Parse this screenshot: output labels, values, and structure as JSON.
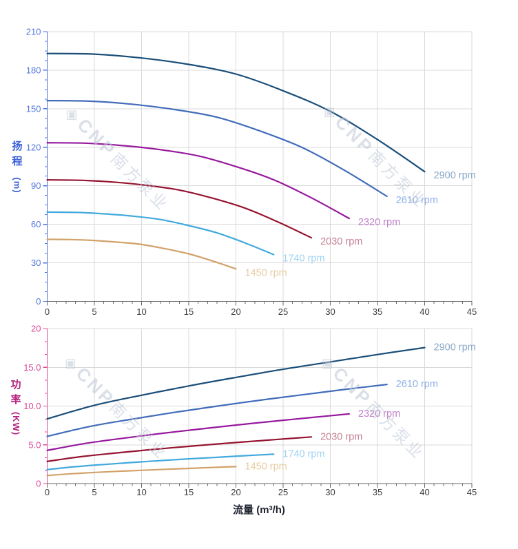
{
  "watermark": {
    "logo_glyph": "◈",
    "brand": "CNP",
    "company": "南方泵业"
  },
  "colors": {
    "grid": "#d9d9d9",
    "x_axis": "#666666",
    "x_tick_label": "#3c3c3c",
    "head_axis": "#4e70dc",
    "head_tick_label": "#5577dd",
    "head_title": "#3a5ed8",
    "power_axis": "#de4a97",
    "power_tick_label": "#dd4796",
    "power_title": "#b5217d"
  },
  "chart_data": [
    {
      "type": "line",
      "title": "",
      "xlabel": "",
      "ylabel": "扬程 (m)",
      "ylabel_chars": [
        "扬",
        "程"
      ],
      "ylabel_unit": "(m)",
      "xlim": [
        0,
        45
      ],
      "ylim": [
        0,
        210
      ],
      "xticks": [
        0,
        5,
        10,
        15,
        20,
        25,
        30,
        35,
        40,
        45
      ],
      "yticks": [
        0,
        30,
        60,
        90,
        120,
        150,
        180,
        210
      ],
      "ytick_labels": [
        "0",
        "30",
        "60",
        "90",
        "120",
        "150",
        "180",
        "210"
      ],
      "grid": true,
      "legend_position": "curve-end-labels",
      "axis_color": "#4e70dc",
      "tick_label_color": "#5577dd",
      "series": [
        {
          "name": "2900 rpm",
          "rpm": 2900,
          "color": "#1a4e78",
          "label_color": "#8aa9c7",
          "points": [
            [
              0,
              193
            ],
            [
              5,
              192.5
            ],
            [
              10,
              189.5
            ],
            [
              15,
              184.5
            ],
            [
              20,
              177
            ],
            [
              25,
              164
            ],
            [
              30,
              148
            ],
            [
              35,
              126
            ],
            [
              40,
              101
            ]
          ]
        },
        {
          "name": "2610 rpm",
          "rpm": 2610,
          "color": "#416cba",
          "label_color": "#8fb0e6",
          "points": [
            [
              0,
              156.3
            ],
            [
              4.5,
              155.9
            ],
            [
              9,
              153.5
            ],
            [
              13.5,
              149.4
            ],
            [
              18,
              143.4
            ],
            [
              22.5,
              132.8
            ],
            [
              27,
              119.9
            ],
            [
              31.5,
              102.1
            ],
            [
              36,
              81.8
            ]
          ]
        },
        {
          "name": "2320 rpm",
          "rpm": 2320,
          "color": "#97189d",
          "label_color": "#c27fca",
          "points": [
            [
              0,
              123.5
            ],
            [
              4,
              123.2
            ],
            [
              8,
              121.3
            ],
            [
              12,
              118.1
            ],
            [
              16,
              113.3
            ],
            [
              20,
              105
            ],
            [
              24,
              94.7
            ],
            [
              28,
              80.6
            ],
            [
              32,
              64.6
            ]
          ]
        },
        {
          "name": "2030 rpm",
          "rpm": 2030,
          "color": "#951431",
          "label_color": "#c57f92",
          "points": [
            [
              0,
              94.6
            ],
            [
              3.5,
              94.3
            ],
            [
              7,
              92.9
            ],
            [
              10.5,
              90.4
            ],
            [
              14,
              86.7
            ],
            [
              17.5,
              80.4
            ],
            [
              21,
              72.5
            ],
            [
              24.5,
              61.7
            ],
            [
              28,
              49.5
            ]
          ]
        },
        {
          "name": "1740 rpm",
          "rpm": 1740,
          "color": "#41a9de",
          "label_color": "#9fd2f2",
          "points": [
            [
              0,
              69.5
            ],
            [
              3,
              69.3
            ],
            [
              6,
              68.2
            ],
            [
              9,
              66.4
            ],
            [
              12,
              63.7
            ],
            [
              15,
              59
            ],
            [
              18,
              53.3
            ],
            [
              21,
              45.4
            ],
            [
              24,
              36.4
            ]
          ]
        },
        {
          "name": "1450 rpm",
          "rpm": 1450,
          "color": "#d2a269",
          "label_color": "#e8cba2",
          "points": [
            [
              0,
              48.3
            ],
            [
              2.5,
              48.1
            ],
            [
              5,
              47.4
            ],
            [
              7.5,
              46.1
            ],
            [
              10,
              44.3
            ],
            [
              12.5,
              41
            ],
            [
              15,
              37
            ],
            [
              17.5,
              31.5
            ],
            [
              20,
              25.3
            ]
          ]
        }
      ]
    },
    {
      "type": "line",
      "title": "",
      "xlabel": "流量 (m³/h)",
      "ylabel": "功率 (KW)",
      "ylabel_chars": [
        "功",
        "率"
      ],
      "ylabel_unit": "(KW)",
      "xlim": [
        0,
        45
      ],
      "ylim": [
        0,
        20
      ],
      "xticks": [
        0,
        5,
        10,
        15,
        20,
        25,
        30,
        35,
        40,
        45
      ],
      "yticks": [
        0,
        5,
        10,
        15,
        20
      ],
      "ytick_labels": [
        "0",
        "5.0",
        "10.0",
        "15.0",
        "20"
      ],
      "grid": true,
      "legend_position": "curve-end-labels",
      "axis_color": "#de4a97",
      "tick_label_color": "#dd4796",
      "series": [
        {
          "name": "2900 rpm",
          "rpm": 2900,
          "color": "#1a4e78",
          "label_color": "#8aa9c7",
          "points": [
            [
              0,
              8.35
            ],
            [
              5,
              10.1
            ],
            [
              10,
              11.4
            ],
            [
              15,
              12.6
            ],
            [
              20,
              13.7
            ],
            [
              25,
              14.75
            ],
            [
              30,
              15.7
            ],
            [
              35,
              16.65
            ],
            [
              40,
              17.55
            ]
          ]
        },
        {
          "name": "2610 rpm",
          "rpm": 2610,
          "color": "#416cba",
          "label_color": "#8fb0e6",
          "points": [
            [
              0,
              6.09
            ],
            [
              4.5,
              7.36
            ],
            [
              9,
              8.31
            ],
            [
              13.5,
              9.19
            ],
            [
              18,
              9.99
            ],
            [
              22.5,
              10.75
            ],
            [
              27,
              11.45
            ],
            [
              31.5,
              12.14
            ],
            [
              36,
              12.79
            ]
          ]
        },
        {
          "name": "2320 rpm",
          "rpm": 2320,
          "color": "#97189d",
          "label_color": "#c27fca",
          "points": [
            [
              0,
              4.28
            ],
            [
              4,
              5.17
            ],
            [
              8,
              5.84
            ],
            [
              12,
              6.45
            ],
            [
              16,
              7.01
            ],
            [
              20,
              7.55
            ],
            [
              24,
              8.04
            ],
            [
              28,
              8.52
            ],
            [
              32,
              8.99
            ]
          ]
        },
        {
          "name": "2030 rpm",
          "rpm": 2030,
          "color": "#951431",
          "label_color": "#c57f92",
          "points": [
            [
              0,
              2.86
            ],
            [
              3.5,
              3.46
            ],
            [
              7,
              3.91
            ],
            [
              10.5,
              4.32
            ],
            [
              14,
              4.7
            ],
            [
              17.5,
              5.06
            ],
            [
              21,
              5.39
            ],
            [
              24.5,
              5.71
            ],
            [
              28,
              6.02
            ]
          ]
        },
        {
          "name": "1740 rpm",
          "rpm": 1740,
          "color": "#41a9de",
          "label_color": "#9fd2f2",
          "points": [
            [
              0,
              1.8
            ],
            [
              3,
              2.18
            ],
            [
              6,
              2.46
            ],
            [
              9,
              2.72
            ],
            [
              12,
              2.96
            ],
            [
              15,
              3.19
            ],
            [
              18,
              3.39
            ],
            [
              21,
              3.6
            ],
            [
              24,
              3.79
            ]
          ]
        },
        {
          "name": "1450 rpm",
          "rpm": 1450,
          "color": "#d2a269",
          "label_color": "#e8cba2",
          "points": [
            [
              0,
              1.04
            ],
            [
              2.5,
              1.26
            ],
            [
              5,
              1.43
            ],
            [
              7.5,
              1.58
            ],
            [
              10,
              1.71
            ],
            [
              12.5,
              1.84
            ],
            [
              15,
              1.96
            ],
            [
              17.5,
              2.08
            ],
            [
              20,
              2.19
            ]
          ]
        }
      ]
    }
  ]
}
